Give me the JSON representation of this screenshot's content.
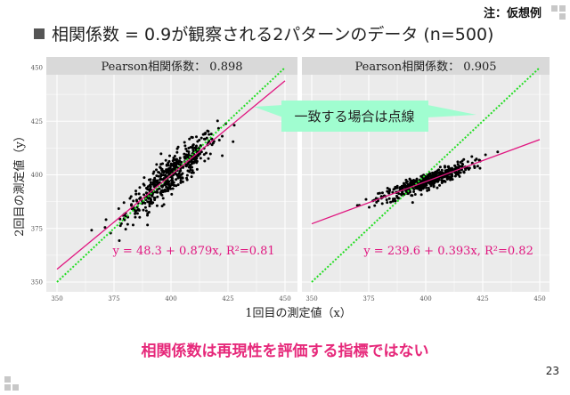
{
  "note": "注：仮想例",
  "title": "相関係数 = 0.9が観察される2パターンのデータ (n=500)",
  "callout": "一致する場合は点線",
  "conclusion": "相関係数は再現性を評価する指標ではない",
  "page_number": "23",
  "colors": {
    "fit_line": "#e0157f",
    "identity_line": "#22dd22",
    "callout_bg": "#a0fdd0",
    "panel_bg": "#ebebeb",
    "strip_bg": "#d9d9d9",
    "conclusion": "#e6287a"
  },
  "chart_data": {
    "type": "scatter",
    "xlabel": "1回目の測定値（x）",
    "ylabel": "2回目の測定値（y）",
    "xlim": [
      350,
      450
    ],
    "ylim": [
      350,
      450
    ],
    "xticks": [
      350,
      375,
      400,
      425,
      450
    ],
    "yticks": [
      350,
      375,
      400,
      425,
      450
    ],
    "n": 500,
    "panels": [
      {
        "strip": "Pearson相関係数： 0.898",
        "x_mean": 400,
        "x_sd": 10,
        "intercept": 48.3,
        "slope": 0.879,
        "resid_sd": 4.2,
        "equation": "y = 48.3 + 0.879x, R²=0.81"
      },
      {
        "strip": "Pearson相関係数： 0.905",
        "x_mean": 400,
        "x_sd": 10,
        "intercept": 239.6,
        "slope": 0.393,
        "resid_sd": 1.85,
        "equation": "y = 239.6 + 0.393x, R²=0.82"
      }
    ]
  }
}
